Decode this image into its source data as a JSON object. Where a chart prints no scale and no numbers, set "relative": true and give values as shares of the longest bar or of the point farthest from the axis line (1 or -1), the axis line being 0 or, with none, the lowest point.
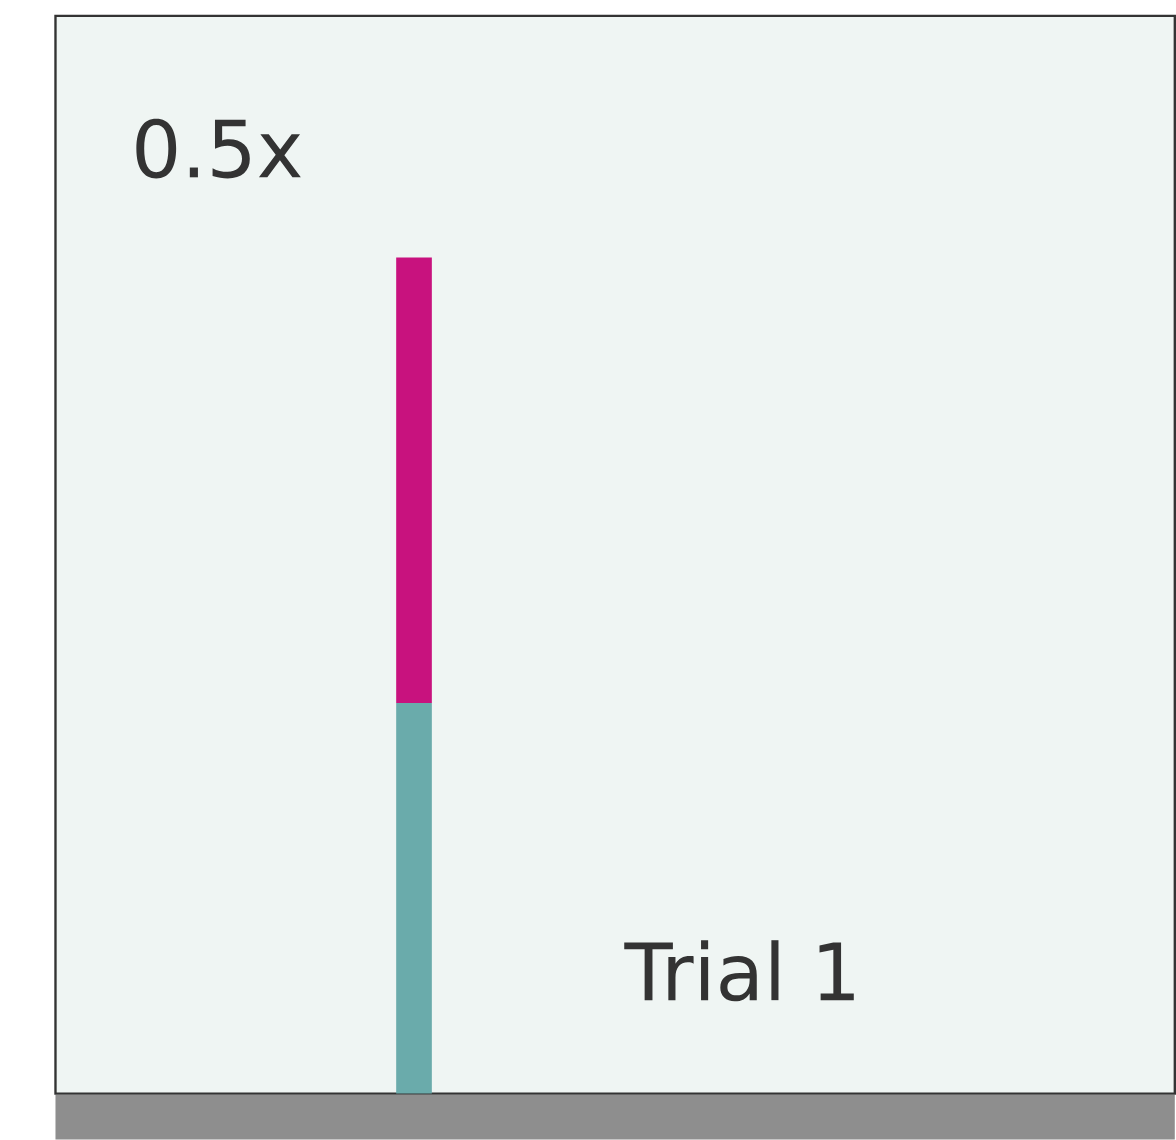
{
  "chart_data": {
    "type": "bar",
    "title": "0.5x",
    "categories": [
      null
    ],
    "stacked": true,
    "relative": true,
    "series": [
      {
        "color": "#6aabab",
        "values": [
          0.467
        ]
      },
      {
        "color": "#c8127e",
        "values": [
          0.533
        ]
      }
    ],
    "annotations": [
      "Trial 1"
    ]
  }
}
